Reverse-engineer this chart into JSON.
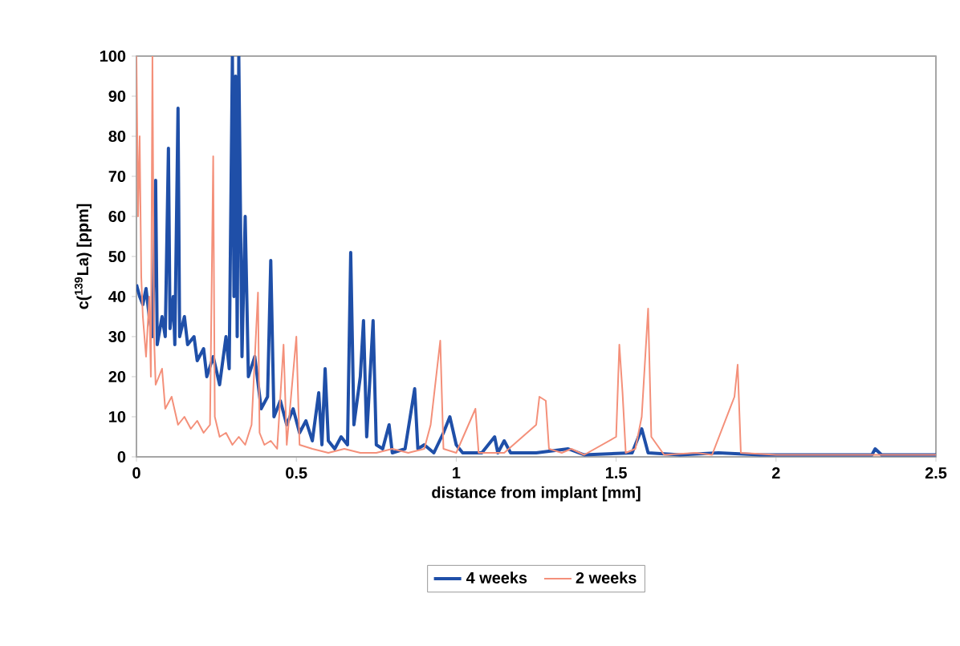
{
  "chart_data": {
    "type": "line",
    "xlabel": "distance from implant [mm]",
    "ylabel": "c($^{139}$La) [ppm]",
    "xlim": [
      0,
      2.5
    ],
    "ylim": [
      0,
      100
    ],
    "xticks": [
      0,
      0.5,
      1,
      1.5,
      2,
      2.5
    ],
    "yticks": [
      0,
      10,
      20,
      30,
      40,
      50,
      60,
      70,
      80,
      90,
      100
    ],
    "grid": false,
    "legend": "bottom",
    "marker": "none",
    "line_style": "solid",
    "series": [
      {
        "name": "4 weeks",
        "color": "#1f4fa8",
        "x": [
          0,
          0.01,
          0.02,
          0.03,
          0.04,
          0.05,
          0.06,
          0.065,
          0.08,
          0.09,
          0.1,
          0.105,
          0.115,
          0.12,
          0.13,
          0.135,
          0.15,
          0.16,
          0.18,
          0.19,
          0.21,
          0.22,
          0.24,
          0.26,
          0.28,
          0.29,
          0.3,
          0.305,
          0.31,
          0.315,
          0.32,
          0.33,
          0.34,
          0.35,
          0.37,
          0.39,
          0.41,
          0.42,
          0.43,
          0.45,
          0.47,
          0.49,
          0.51,
          0.53,
          0.55,
          0.57,
          0.58,
          0.59,
          0.6,
          0.62,
          0.64,
          0.66,
          0.67,
          0.68,
          0.7,
          0.71,
          0.72,
          0.74,
          0.75,
          0.77,
          0.79,
          0.8,
          0.84,
          0.87,
          0.88,
          0.9,
          0.93,
          0.96,
          0.98,
          1.0,
          1.02,
          1.08,
          1.12,
          1.13,
          1.15,
          1.17,
          1.25,
          1.35,
          1.4,
          1.55,
          1.58,
          1.6,
          1.7,
          1.82,
          1.95,
          2.1,
          2.3,
          2.31,
          2.33,
          2.5
        ],
        "values": [
          43,
          40,
          38,
          42,
          35,
          30,
          69,
          28,
          35,
          30,
          77,
          32,
          40,
          28,
          87,
          30,
          35,
          28,
          30,
          24,
          27,
          20,
          25,
          18,
          30,
          22,
          100,
          40,
          95,
          30,
          100,
          25,
          60,
          20,
          25,
          12,
          15,
          49,
          10,
          14,
          8,
          12,
          6,
          9,
          4,
          16,
          3,
          22,
          4,
          2,
          5,
          3,
          51,
          8,
          20,
          34,
          5,
          34,
          3,
          2,
          8,
          1,
          2,
          17,
          2,
          3,
          1,
          6,
          10,
          3,
          1,
          1,
          5,
          1,
          4,
          1,
          1,
          2,
          0.5,
          1,
          7,
          1,
          0.5,
          1,
          0.5,
          0.5,
          0.5,
          2,
          0.5,
          0.5
        ]
      },
      {
        "name": "2 weeks",
        "color": "#f4907a",
        "x": [
          0,
          0.005,
          0.01,
          0.015,
          0.02,
          0.03,
          0.04,
          0.045,
          0.05,
          0.055,
          0.06,
          0.08,
          0.09,
          0.11,
          0.13,
          0.15,
          0.17,
          0.19,
          0.21,
          0.23,
          0.24,
          0.245,
          0.26,
          0.28,
          0.3,
          0.32,
          0.34,
          0.36,
          0.38,
          0.385,
          0.4,
          0.42,
          0.44,
          0.46,
          0.47,
          0.5,
          0.51,
          0.55,
          0.6,
          0.65,
          0.7,
          0.75,
          0.8,
          0.85,
          0.9,
          0.92,
          0.95,
          0.96,
          1.0,
          1.06,
          1.07,
          1.15,
          1.25,
          1.26,
          1.28,
          1.29,
          1.33,
          1.36,
          1.4,
          1.5,
          1.51,
          1.52,
          1.53,
          1.56,
          1.58,
          1.6,
          1.61,
          1.65,
          1.75,
          1.8,
          1.87,
          1.88,
          1.89,
          2.0,
          2.2,
          2.5
        ],
        "values": [
          100,
          60,
          80,
          45,
          35,
          25,
          40,
          20,
          100,
          30,
          18,
          22,
          12,
          15,
          8,
          10,
          7,
          9,
          6,
          8,
          75,
          10,
          5,
          6,
          3,
          5,
          3,
          8,
          41,
          6,
          3,
          4,
          2,
          28,
          3,
          30,
          3,
          2,
          1,
          2,
          1,
          1,
          2,
          1,
          2,
          8,
          29,
          2,
          1,
          12,
          1,
          1,
          8,
          15,
          14,
          2,
          1,
          2,
          0.5,
          5,
          28,
          16,
          1,
          2,
          10,
          37,
          5,
          0.5,
          1,
          0.5,
          15,
          23,
          1,
          0.5,
          0.5,
          0.5
        ]
      }
    ]
  }
}
